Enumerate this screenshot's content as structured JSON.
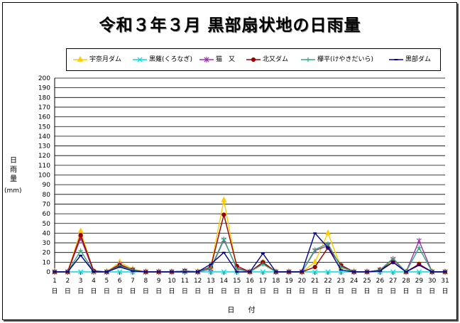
{
  "window": {
    "title": "令和３年３月 黒部扇状地の日雨量"
  },
  "axes": {
    "ylabel_chars": [
      "日",
      "雨",
      "量"
    ],
    "yunit": "(mm)",
    "xlabel": "日 付",
    "x_suffix": "日"
  },
  "chart_data": {
    "type": "line",
    "title": "令和３年３月 黒部扇状地の日雨量",
    "xlabel": "日 付",
    "ylabel": "日雨量 (mm)",
    "ylim": [
      0,
      200
    ],
    "ytick_step": 10,
    "grid": true,
    "legend_position": "top",
    "x": [
      1,
      2,
      3,
      4,
      5,
      6,
      7,
      8,
      9,
      10,
      11,
      12,
      13,
      14,
      15,
      16,
      17,
      18,
      19,
      20,
      21,
      22,
      23,
      24,
      25,
      26,
      27,
      28,
      29,
      30,
      31
    ],
    "series": [
      {
        "name": "宇奈月ダム",
        "color": "#ffcc00",
        "marker": "triangle",
        "values": [
          0,
          0,
          42,
          0,
          0,
          10,
          3,
          0,
          0,
          0,
          0,
          0,
          5,
          74,
          3,
          0,
          10,
          0,
          0,
          0,
          10,
          40,
          5,
          0,
          0,
          2,
          12,
          0,
          8,
          0,
          0
        ]
      },
      {
        "name": "黒薙(くろなぎ)",
        "color": "#00dddd",
        "marker": "x",
        "values": [
          0,
          0,
          0,
          0,
          0,
          0,
          0,
          0,
          0,
          0,
          0,
          0,
          0,
          0,
          0,
          0,
          0,
          0,
          0,
          0,
          0,
          0,
          0,
          0,
          0,
          0,
          0,
          0,
          0,
          0,
          0
        ]
      },
      {
        "name": "猫　又",
        "color": "#9933aa",
        "marker": "star",
        "values": [
          0,
          0,
          35,
          0,
          0,
          8,
          2,
          0,
          0,
          0,
          1,
          0,
          3,
          33,
          4,
          0,
          9,
          0,
          0,
          0,
          22,
          27,
          6,
          0,
          0,
          2,
          13,
          0,
          32,
          0,
          0
        ]
      },
      {
        "name": "北又ダム",
        "color": "#990000",
        "marker": "circle",
        "values": [
          0,
          0,
          38,
          1,
          0,
          7,
          2,
          0,
          0,
          0,
          1,
          0,
          5,
          59,
          6,
          0,
          10,
          0,
          0,
          0,
          5,
          25,
          7,
          0,
          0,
          2,
          10,
          0,
          8,
          0,
          0
        ]
      },
      {
        "name": "欅平(けやきだいら)",
        "color": "#33aa77",
        "marker": "plus",
        "values": [
          0,
          0,
          22,
          0,
          0,
          6,
          2,
          0,
          0,
          0,
          1,
          0,
          4,
          34,
          3,
          0,
          8,
          0,
          0,
          0,
          23,
          29,
          5,
          0,
          0,
          2,
          14,
          0,
          25,
          0,
          0
        ]
      },
      {
        "name": "黒部ダム",
        "color": "#000099",
        "marker": "dash",
        "values": [
          0,
          0,
          17,
          0,
          0,
          5,
          1,
          0,
          0,
          0,
          0,
          0,
          8,
          20,
          0,
          0,
          19,
          0,
          0,
          0,
          40,
          25,
          2,
          0,
          0,
          1,
          10,
          0,
          7,
          0,
          0
        ]
      }
    ]
  }
}
